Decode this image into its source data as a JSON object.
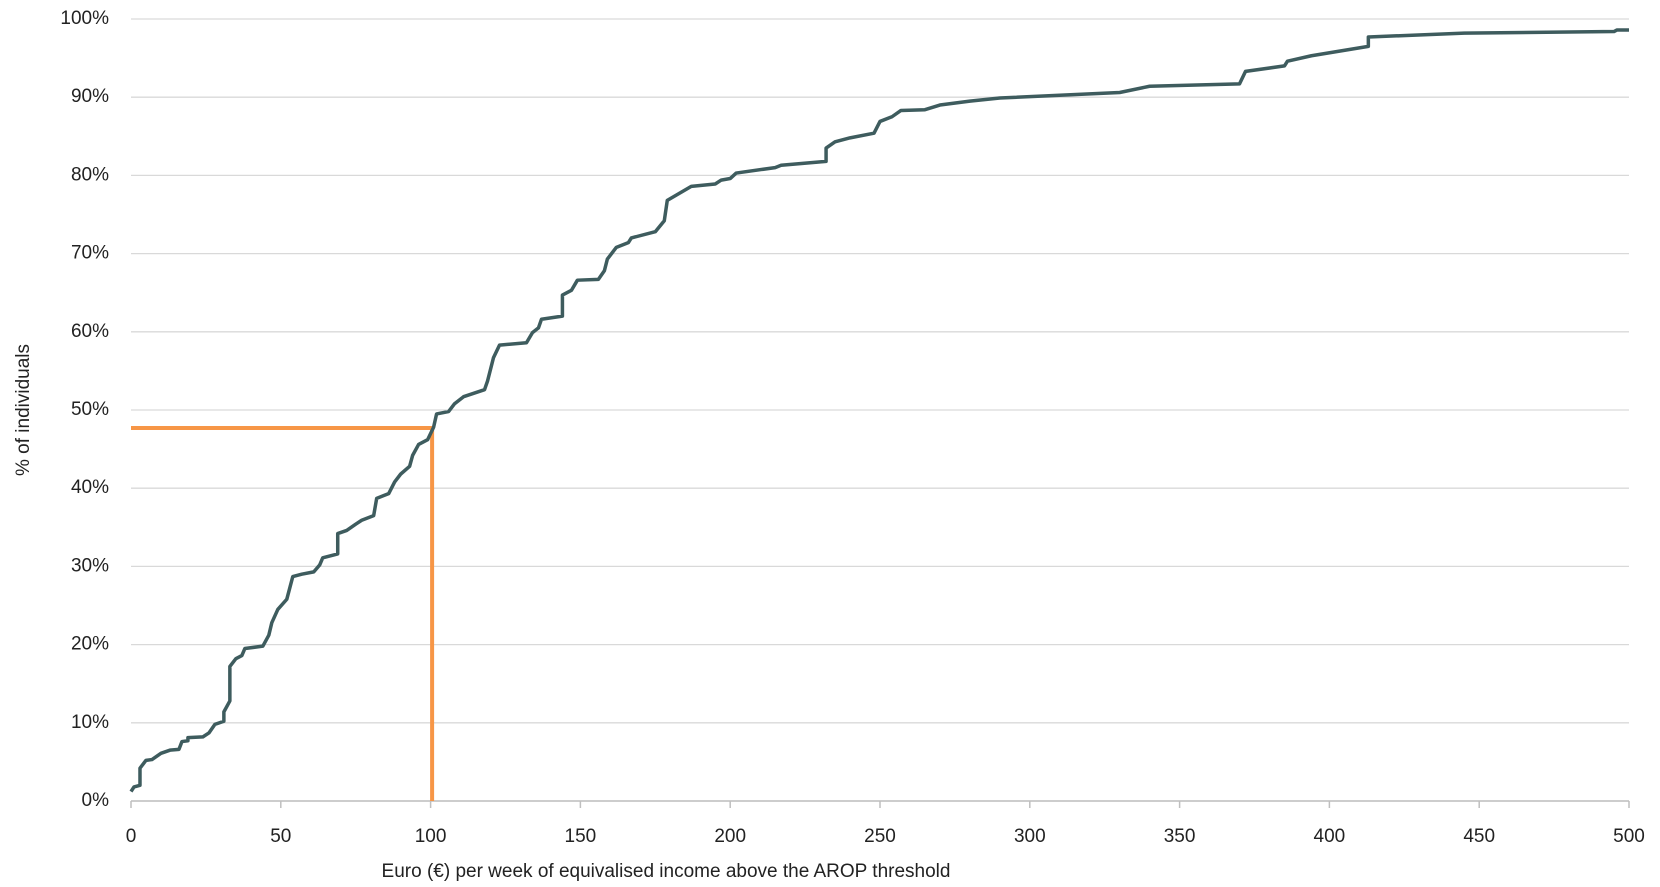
{
  "chart_data": {
    "type": "line",
    "xlabel": "Euro (€) per week of equivalised income above the AROP threshold",
    "ylabel": "% of individuals",
    "x": [
      0,
      1,
      3,
      3,
      5,
      7,
      10,
      13,
      16,
      17,
      19,
      19,
      24,
      26,
      28,
      31,
      31,
      33,
      33,
      35,
      37,
      38,
      44,
      46,
      47,
      49,
      52,
      54,
      57,
      61,
      63,
      64,
      69,
      69,
      72,
      75,
      77,
      81,
      82,
      86,
      88,
      90,
      93,
      94,
      96,
      99,
      101,
      102,
      106,
      108,
      111,
      118,
      119,
      121,
      123,
      132,
      134,
      136,
      137,
      144,
      144,
      147,
      149,
      156,
      158,
      159,
      162,
      166,
      167,
      175,
      178,
      179,
      187,
      195,
      197,
      200,
      202,
      215,
      217,
      232,
      232,
      235,
      240,
      248,
      250,
      254,
      257,
      265,
      270,
      280,
      290,
      330,
      340,
      370,
      372,
      385,
      386,
      394,
      413,
      413,
      445,
      495,
      496,
      500
    ],
    "series": [
      {
        "color": "#3e5c5e",
        "values": [
          1.2,
          1.8,
          2,
          4.2,
          5.2,
          5.3,
          6.1,
          6.5,
          6.6,
          7.6,
          7.7,
          8.1,
          8.2,
          8.7,
          9.8,
          10.2,
          11.4,
          12.8,
          17.2,
          18.2,
          18.6,
          19.5,
          19.8,
          21.2,
          22.8,
          24.5,
          25.8,
          28.7,
          29,
          29.3,
          30.2,
          31.1,
          31.6,
          34.2,
          34.6,
          35.4,
          35.9,
          36.5,
          38.7,
          39.3,
          40.8,
          41.8,
          42.8,
          44.2,
          45.6,
          46.2,
          47.8,
          49.5,
          49.8,
          50.8,
          51.7,
          52.6,
          53.7,
          56.7,
          58.3,
          58.6,
          59.9,
          60.5,
          61.6,
          62,
          64.7,
          65.3,
          66.6,
          66.7,
          67.8,
          69.3,
          70.8,
          71.4,
          72,
          72.8,
          74.2,
          76.8,
          78.6,
          78.9,
          79.4,
          79.6,
          80.3,
          81,
          81.3,
          81.8,
          83.5,
          84.3,
          84.8,
          85.4,
          86.9,
          87.5,
          88.3,
          88.4,
          89,
          89.5,
          89.9,
          90.6,
          91.4,
          91.7,
          93.3,
          94,
          94.6,
          95.3,
          96.5,
          97.7,
          98.2,
          98.4,
          98.6,
          98.6
        ]
      }
    ],
    "reference": {
      "x": 100.5,
      "y": 47.7,
      "color": "#f79646"
    },
    "xlim": [
      0,
      500
    ],
    "xticks": [
      0,
      50,
      100,
      150,
      200,
      250,
      300,
      350,
      400,
      450,
      500
    ],
    "ylim": [
      0,
      100
    ],
    "yticks": [
      {
        "value": 0,
        "label": "0%"
      },
      {
        "value": 10,
        "label": "10%"
      },
      {
        "value": 20,
        "label": "20%"
      },
      {
        "value": 30,
        "label": "30%"
      },
      {
        "value": 40,
        "label": "40%"
      },
      {
        "value": 50,
        "label": "50%"
      },
      {
        "value": 60,
        "label": "60%"
      },
      {
        "value": 70,
        "label": "70%"
      },
      {
        "value": 80,
        "label": "80%"
      },
      {
        "value": 90,
        "label": "90%"
      },
      {
        "value": 100,
        "label": "100%"
      }
    ],
    "grid": true
  }
}
